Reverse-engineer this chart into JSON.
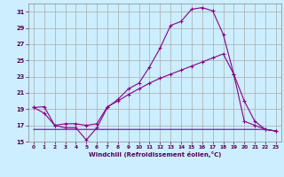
{
  "xlabel": "Windchill (Refroidissement éolien,°C)",
  "bg_color": "#cceeff",
  "grid_color": "#aaaaaa",
  "line_color1": "#880088",
  "line_color2": "#880088",
  "line_color3": "#880088",
  "xlim": [
    -0.5,
    23.5
  ],
  "ylim": [
    15,
    32
  ],
  "yticks": [
    15,
    17,
    19,
    21,
    23,
    25,
    27,
    29,
    31
  ],
  "xticks": [
    0,
    1,
    2,
    3,
    4,
    5,
    6,
    7,
    8,
    9,
    10,
    11,
    12,
    13,
    14,
    15,
    16,
    17,
    18,
    19,
    20,
    21,
    22,
    23
  ],
  "s1_x": [
    0,
    1,
    2,
    3,
    4,
    5,
    6,
    7,
    8,
    9,
    10,
    11,
    12,
    13,
    14,
    15,
    16,
    17,
    18,
    19,
    20,
    21,
    22,
    23
  ],
  "s1_y": [
    19.2,
    18.5,
    17.0,
    16.7,
    16.7,
    15.2,
    16.7,
    19.2,
    20.2,
    21.5,
    22.2,
    24.2,
    26.5,
    29.3,
    29.8,
    31.3,
    31.5,
    31.1,
    28.2,
    23.3,
    20.0,
    17.5,
    16.5,
    16.3
  ],
  "s2_x": [
    0,
    1,
    2,
    3,
    4,
    5,
    6,
    7,
    8,
    9,
    10,
    11,
    12,
    13,
    14,
    15,
    16,
    17,
    18,
    19,
    20,
    21,
    22,
    23
  ],
  "s2_y": [
    19.2,
    19.3,
    17.0,
    17.2,
    17.2,
    17.0,
    17.2,
    19.3,
    20.0,
    20.8,
    21.5,
    22.2,
    22.8,
    23.3,
    23.8,
    24.3,
    24.8,
    25.3,
    25.8,
    23.3,
    17.5,
    17.0,
    16.5,
    16.3
  ],
  "s3_x": [
    0,
    1,
    2,
    3,
    4,
    5,
    6,
    7,
    8,
    9,
    10,
    11,
    12,
    13,
    14,
    15,
    16,
    17,
    18,
    19,
    20,
    21,
    22,
    23
  ],
  "s3_y": [
    16.5,
    16.5,
    16.5,
    16.5,
    16.5,
    16.5,
    16.5,
    16.5,
    16.5,
    16.5,
    16.5,
    16.5,
    16.5,
    16.5,
    16.5,
    16.5,
    16.5,
    16.5,
    16.5,
    16.5,
    16.5,
    16.5,
    16.5,
    16.3
  ]
}
